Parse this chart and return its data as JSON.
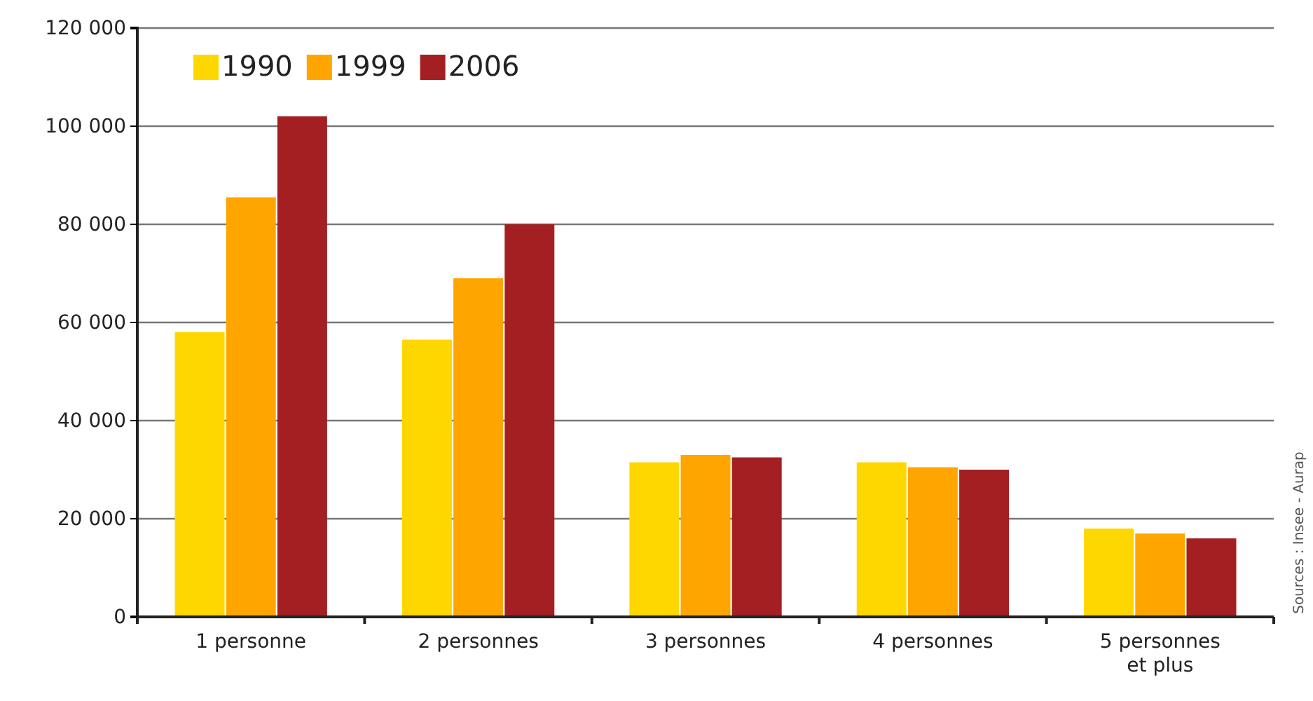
{
  "chart_data": {
    "type": "bar",
    "categories": [
      "1 personne",
      "2 personnes",
      "3 personnes",
      "4 personnes",
      "5 personnes\net plus"
    ],
    "series": [
      {
        "name": "1990",
        "color": "#ffd700",
        "values": [
          58000,
          56500,
          31500,
          31500,
          18000
        ]
      },
      {
        "name": "1999",
        "color": "#ffa500",
        "values": [
          85500,
          69000,
          33000,
          30500,
          17000
        ]
      },
      {
        "name": "2006",
        "color": "#a31f22",
        "values": [
          102000,
          80000,
          32500,
          30000,
          16000
        ]
      }
    ],
    "ylim": [
      0,
      120000
    ],
    "yticks": [
      {
        "value": 0,
        "label": "0"
      },
      {
        "value": 20000,
        "label": "20 000"
      },
      {
        "value": 40000,
        "label": "40 000"
      },
      {
        "value": 60000,
        "label": "60 000"
      },
      {
        "value": 80000,
        "label": "80 000"
      },
      {
        "value": 100000,
        "label": "100 000"
      },
      {
        "value": 120000,
        "label": "120 000"
      }
    ],
    "grid": "y",
    "legend": "top left",
    "annotations": [
      "Sources : Insee - Aurap"
    ]
  }
}
